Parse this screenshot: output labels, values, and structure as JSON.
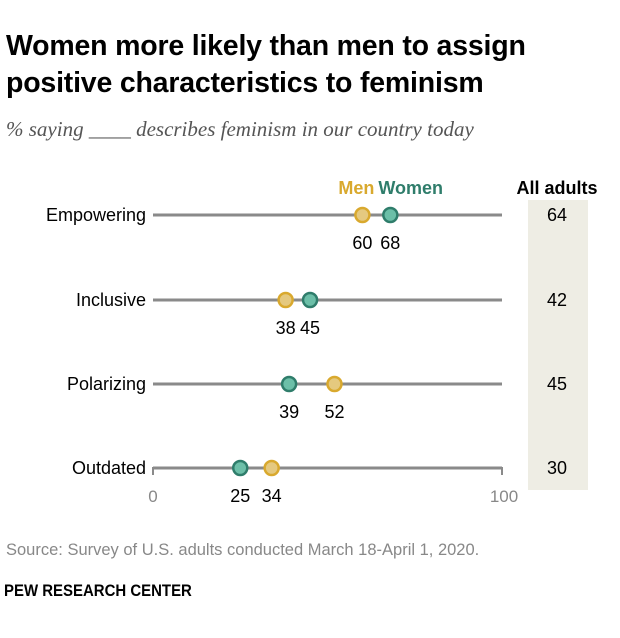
{
  "title": "Women more likely than men to assign positive characteristics to feminism",
  "subtitle": "% saying ____ describes feminism in our country today",
  "source": "Source: Survey of U.S. adults conducted March 18-April 1, 2020.",
  "brand": "PEW RESEARCH CENTER",
  "chart_data": {
    "type": "dot",
    "categories": [
      "Empowering",
      "Inclusive",
      "Polarizing",
      "Outdated"
    ],
    "series": [
      {
        "name": "Men",
        "values": [
          60,
          38,
          52,
          34
        ],
        "color": "#d9a92e",
        "fill": "#e5c97f"
      },
      {
        "name": "Women",
        "values": [
          68,
          45,
          39,
          25
        ],
        "color": "#2f7d6b",
        "fill": "#6cbfa8"
      }
    ],
    "all_adults_label": "All adults",
    "all_adults": [
      64,
      42,
      45,
      30
    ],
    "xlim": [
      0,
      100
    ],
    "x_ticks": [
      "0",
      "100"
    ],
    "legend_placement": "top"
  }
}
